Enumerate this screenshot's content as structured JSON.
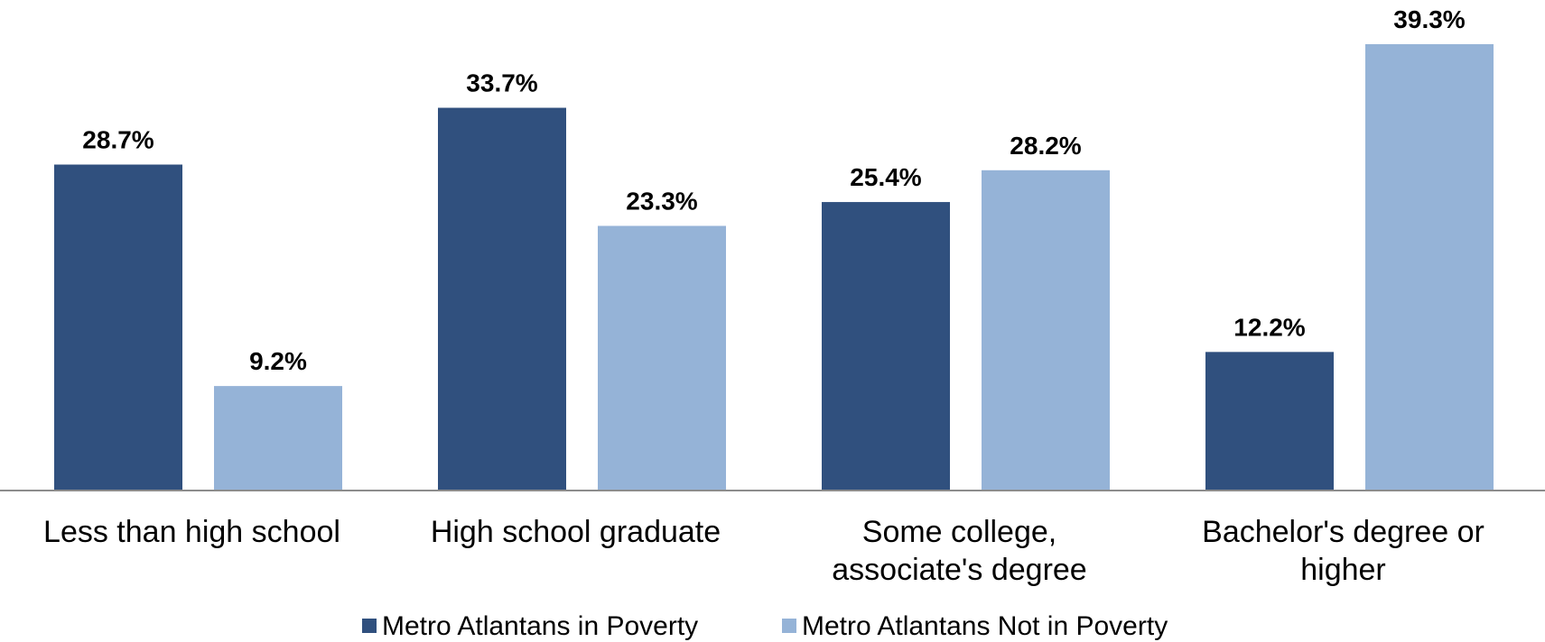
{
  "chart_data": {
    "type": "bar",
    "title": "",
    "xlabel": "",
    "ylabel": "",
    "ylim": [
      0,
      39.3
    ],
    "grid": false,
    "legend_position": "bottom",
    "categories": [
      [
        "Less than high school"
      ],
      [
        "High school graduate"
      ],
      [
        "Some college,",
        "associate's degree"
      ],
      [
        "Bachelor's degree or",
        "higher"
      ]
    ],
    "series": [
      {
        "name": "Metro Atlantans in Poverty",
        "color": "#30507E",
        "values": [
          28.7,
          33.7,
          25.4,
          12.2
        ],
        "labels": [
          "28.7%",
          "33.7%",
          "25.4%",
          "12.2%"
        ]
      },
      {
        "name": "Metro Atlantans Not in Poverty",
        "color": "#95B3D7",
        "values": [
          9.2,
          23.3,
          28.2,
          39.3
        ],
        "labels": [
          "9.2%",
          "23.3%",
          "28.2%",
          "39.3%"
        ]
      }
    ],
    "axis_color": "#8C8C8C"
  }
}
